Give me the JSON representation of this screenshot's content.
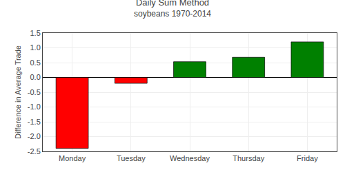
{
  "chart_data": {
    "type": "bar",
    "title": "Daily Sum Method",
    "subtitle": "soybeans 1970-2014",
    "categories": [
      "Monday",
      "Tuesday",
      "Wednesday",
      "Thursday",
      "Friday"
    ],
    "values": [
      -2.4,
      -0.2,
      0.53,
      0.68,
      1.2
    ],
    "colors": [
      "#ff0000",
      "#ff0000",
      "#008000",
      "#008000",
      "#008000"
    ],
    "ylabel": "Difference in Average Trade",
    "ylim": [
      -2.5,
      1.5
    ],
    "yticks": [
      -2.5,
      {
        "value": -2.0,
        "label": "-2.0"
      },
      -1.5,
      {
        "value": -1.0,
        "label": "-1.0"
      },
      -0.5,
      {
        "value": 0.0,
        "label": "0.0"
      },
      0.5,
      {
        "value": 1.0,
        "label": "1.0"
      },
      1.5
    ],
    "grid": true
  }
}
